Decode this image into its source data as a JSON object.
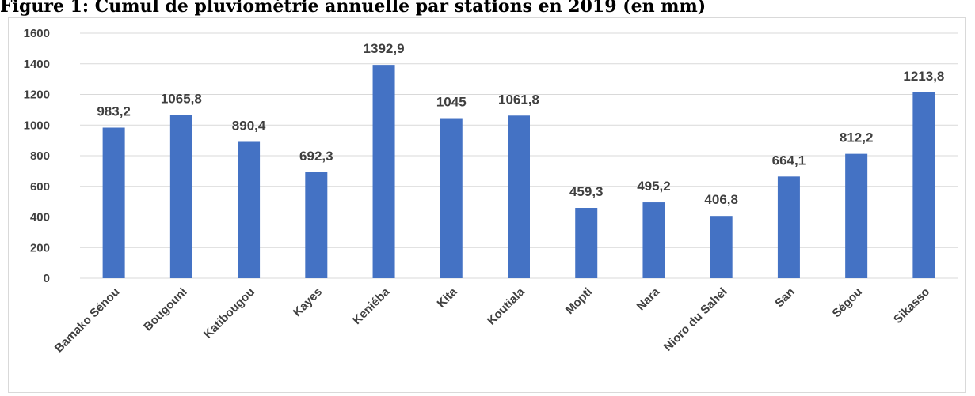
{
  "title": "Figure 1: Cumul de pluviométrie annuelle par stations en 2019 (en mm)",
  "chart_data": {
    "type": "bar",
    "categories": [
      "Bamako Sénou",
      "Bougouni",
      "Katibougou",
      "Kayes",
      "Keniéba",
      "Kita",
      "Koutiala",
      "Mopti",
      "Nara",
      "Nioro du Sahel",
      "San",
      "Ségou",
      "Sikasso"
    ],
    "values": [
      983.2,
      1065.8,
      890.4,
      692.3,
      1392.9,
      1045,
      1061.8,
      459.3,
      495.2,
      406.8,
      664.1,
      812.2,
      1213.8
    ],
    "data_labels": [
      "983,2",
      "1065,8",
      "890,4",
      "692,3",
      "1392,9",
      "1045",
      "1061,8",
      "459,3",
      "495,2",
      "406,8",
      "664,1",
      "812,2",
      "1213,8"
    ],
    "yticks": [
      "0",
      "200",
      "400",
      "600",
      "800",
      "1000",
      "1200",
      "1400",
      "1600"
    ],
    "ylim": [
      0,
      1600
    ],
    "grid": true,
    "legend": "none",
    "bar_color": "#4472C4",
    "grid_color": "#d9d9d9"
  }
}
